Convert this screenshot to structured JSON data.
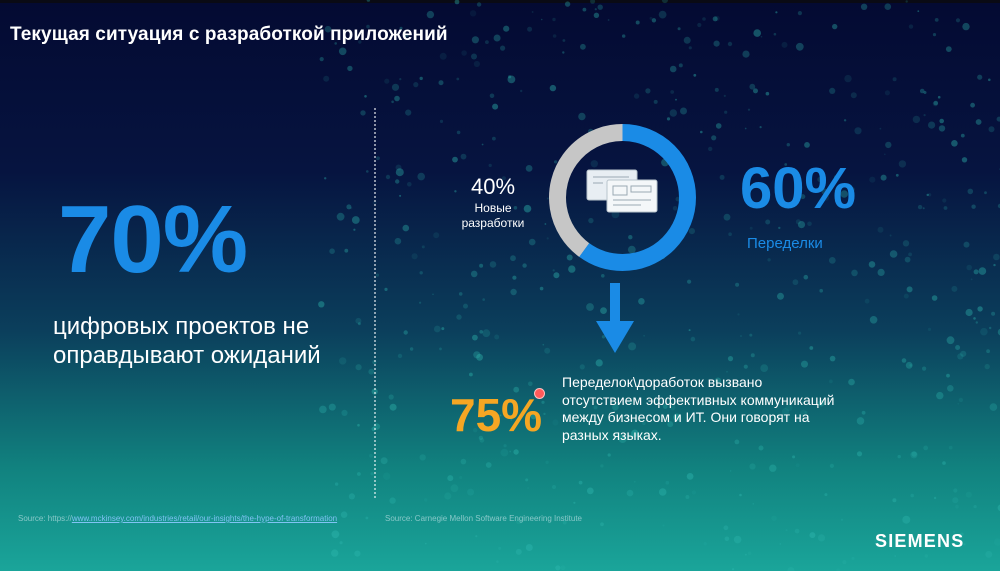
{
  "slide": {
    "title": "Текущая ситуация с разработкой приложений"
  },
  "left_panel": {
    "percent": "70%",
    "description": "цифровых проектов не оправдывают ожиданий"
  },
  "right_panel": {
    "ring": {
      "new_dev_share": 40,
      "rework_share": 60,
      "new_dev_color": "#c6c6c6",
      "rework_color": "#1a8be6",
      "icon": "blueprint-documents-icon"
    },
    "new_dev_percent": "40%",
    "new_dev_label": "Новые разработки",
    "rework_percent": "60%",
    "rework_label": "Переделки",
    "arrow_icon": "down-arrow-icon",
    "reason_percent": "75%",
    "reason_text": "Переделок\\доработок вызвано отсутствием эффективных коммуникаций между бизнесом и ИТ. Они говорят на разных языках."
  },
  "sources": {
    "left_prefix": "Source: https://",
    "left_link": "www.mckinsey.com/industries/retail/our-insights/the-hype-of-transformation",
    "right": "Source: Carnegie Mellon Software Engineering Institute"
  },
  "brand": {
    "logo_text": "SIEMENS"
  },
  "colors": {
    "accent_blue": "#1a8be6",
    "accent_orange": "#f5a623"
  }
}
